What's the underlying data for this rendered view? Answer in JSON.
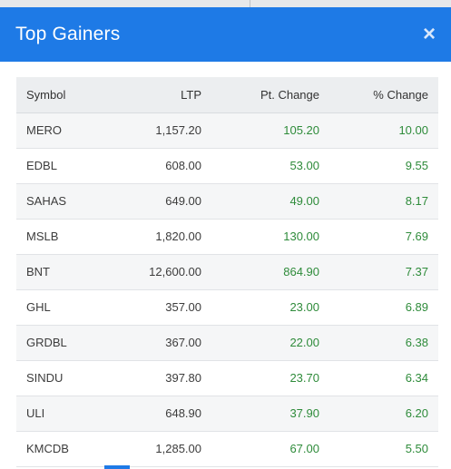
{
  "modal": {
    "title": "Top Gainers",
    "close_glyph": "×",
    "close_icon": "close-icon"
  },
  "colors": {
    "header_bg": "#1e7ae6",
    "gain_text": "#2e8b3a",
    "row_alt": "#f5f6f7",
    "table_head_bg": "#eceef0"
  },
  "table": {
    "headers": {
      "symbol": "Symbol",
      "ltp": "LTP",
      "pt_change": "Pt. Change",
      "pct_change": "% Change"
    },
    "rows": [
      {
        "symbol": "MERO",
        "ltp": "1,157.20",
        "pt_change": "105.20",
        "pct_change": "10.00"
      },
      {
        "symbol": "EDBL",
        "ltp": "608.00",
        "pt_change": "53.00",
        "pct_change": "9.55"
      },
      {
        "symbol": "SAHAS",
        "ltp": "649.00",
        "pt_change": "49.00",
        "pct_change": "8.17"
      },
      {
        "symbol": "MSLB",
        "ltp": "1,820.00",
        "pt_change": "130.00",
        "pct_change": "7.69"
      },
      {
        "symbol": "BNT",
        "ltp": "12,600.00",
        "pt_change": "864.90",
        "pct_change": "7.37"
      },
      {
        "symbol": "GHL",
        "ltp": "357.00",
        "pt_change": "23.00",
        "pct_change": "6.89"
      },
      {
        "symbol": "GRDBL",
        "ltp": "367.00",
        "pt_change": "22.00",
        "pct_change": "6.38"
      },
      {
        "symbol": "SINDU",
        "ltp": "397.80",
        "pt_change": "23.70",
        "pct_change": "6.34"
      },
      {
        "symbol": "ULI",
        "ltp": "648.90",
        "pt_change": "37.90",
        "pct_change": "6.20"
      },
      {
        "symbol": "KMCDB",
        "ltp": "1,285.00",
        "pt_change": "67.00",
        "pct_change": "5.50"
      }
    ]
  }
}
